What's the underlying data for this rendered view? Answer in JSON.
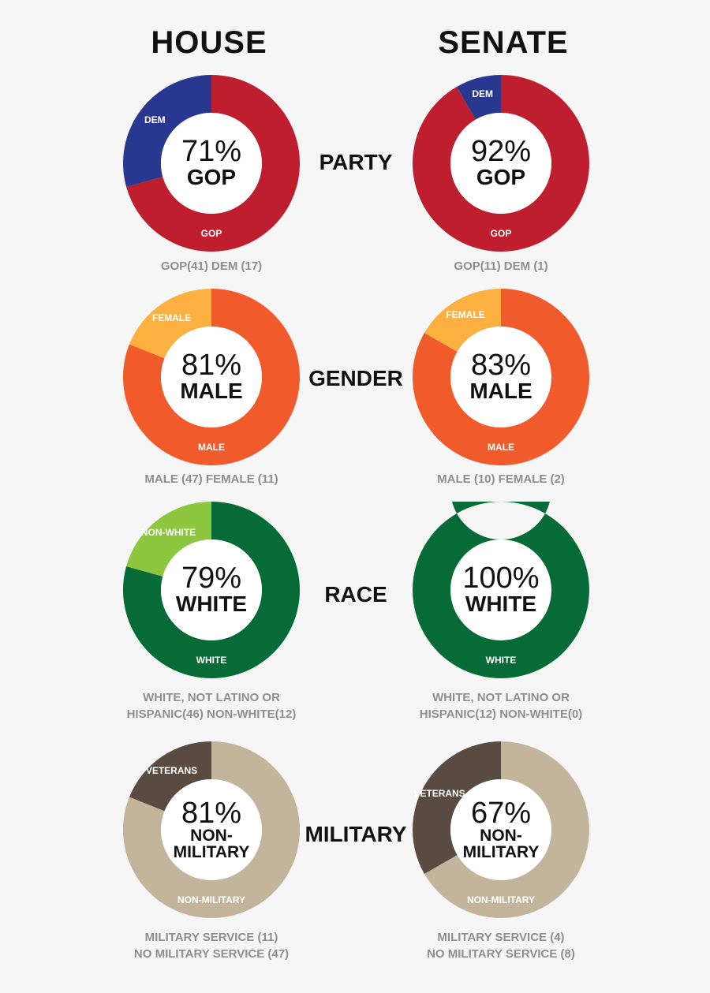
{
  "columns": {
    "left": "HOUSE",
    "right": "SENATE"
  },
  "colors": {
    "gop": "#be1e2d",
    "dem": "#283891",
    "male": "#f15a2b",
    "female": "#fbb040",
    "white": "#066b37",
    "nonwhite": "#8dc63f",
    "nonmilitary": "#c2b59b",
    "veterans": "#594a42",
    "caption": "#8e8e8e",
    "background": "#f6f6f6"
  },
  "rows": [
    {
      "label": "PARTY",
      "house": {
        "pct": "71%",
        "center_label": "GOP",
        "major_label": "GOP",
        "minor_label": "DEM",
        "caption": [
          "GOP(41) DEM (17)"
        ]
      },
      "senate": {
        "pct": "92%",
        "center_label": "GOP",
        "major_label": "GOP",
        "minor_label": "DEM",
        "caption": [
          "GOP(11) DEM (1)"
        ]
      }
    },
    {
      "label": "GENDER",
      "house": {
        "pct": "81%",
        "center_label": "MALE",
        "major_label": "MALE",
        "minor_label": "FEMALE",
        "caption": [
          "MALE (47) FEMALE (11)"
        ]
      },
      "senate": {
        "pct": "83%",
        "center_label": "MALE",
        "major_label": "MALE",
        "minor_label": "FEMALE",
        "caption": [
          "MALE (10) FEMALE (2)"
        ]
      }
    },
    {
      "label": "RACE",
      "house": {
        "pct": "79%",
        "center_label": "WHITE",
        "major_label": "WHITE",
        "minor_label": "NON-WHITE",
        "caption": [
          "WHITE, NOT LATINO OR",
          "HISPANIC(46) NON-WHITE(12)"
        ]
      },
      "senate": {
        "pct": "100%",
        "center_label": "WHITE",
        "major_label": "WHITE",
        "minor_label": "",
        "caption": [
          "WHITE, NOT LATINO OR",
          "HISPANIC(12) NON-WHITE(0)"
        ]
      }
    },
    {
      "label": "MILITARY",
      "house": {
        "pct": "81%",
        "center_label_1": "NON-",
        "center_label_2": "MILITARY",
        "major_label": "NON-MILITARY",
        "minor_label": "VETERANS",
        "caption": [
          "MILITARY SERVICE (11)",
          "NO MILITARY SERVICE (47)"
        ]
      },
      "senate": {
        "pct": "67%",
        "center_label_1": "NON-",
        "center_label_2": "MILITARY",
        "major_label": "NON-MILITARY",
        "minor_label": "VETERANS",
        "caption": [
          "MILITARY SERVICE (4)",
          "NO MILITARY SERVICE (8)"
        ]
      }
    }
  ],
  "chart_data": [
    {
      "type": "pie",
      "title": "HOUSE - PARTY",
      "categories": [
        "GOP",
        "DEM"
      ],
      "values": [
        41,
        17
      ],
      "percent_label": "71% GOP"
    },
    {
      "type": "pie",
      "title": "SENATE - PARTY",
      "categories": [
        "GOP",
        "DEM"
      ],
      "values": [
        11,
        1
      ],
      "percent_label": "92% GOP"
    },
    {
      "type": "pie",
      "title": "HOUSE - GENDER",
      "categories": [
        "MALE",
        "FEMALE"
      ],
      "values": [
        47,
        11
      ],
      "percent_label": "81% MALE"
    },
    {
      "type": "pie",
      "title": "SENATE - GENDER",
      "categories": [
        "MALE",
        "FEMALE"
      ],
      "values": [
        10,
        2
      ],
      "percent_label": "83% MALE"
    },
    {
      "type": "pie",
      "title": "HOUSE - RACE",
      "categories": [
        "WHITE, NOT LATINO OR HISPANIC",
        "NON-WHITE"
      ],
      "values": [
        46,
        12
      ],
      "percent_label": "79% WHITE"
    },
    {
      "type": "pie",
      "title": "SENATE - RACE",
      "categories": [
        "WHITE, NOT LATINO OR HISPANIC",
        "NON-WHITE"
      ],
      "values": [
        12,
        0
      ],
      "percent_label": "100% WHITE"
    },
    {
      "type": "pie",
      "title": "HOUSE - MILITARY",
      "categories": [
        "NO MILITARY SERVICE",
        "MILITARY SERVICE"
      ],
      "values": [
        47,
        11
      ],
      "percent_label": "81% NON-MILITARY"
    },
    {
      "type": "pie",
      "title": "SENATE - MILITARY",
      "categories": [
        "NO MILITARY SERVICE",
        "MILITARY SERVICE"
      ],
      "values": [
        8,
        4
      ],
      "percent_label": "67% NON-MILITARY"
    }
  ]
}
